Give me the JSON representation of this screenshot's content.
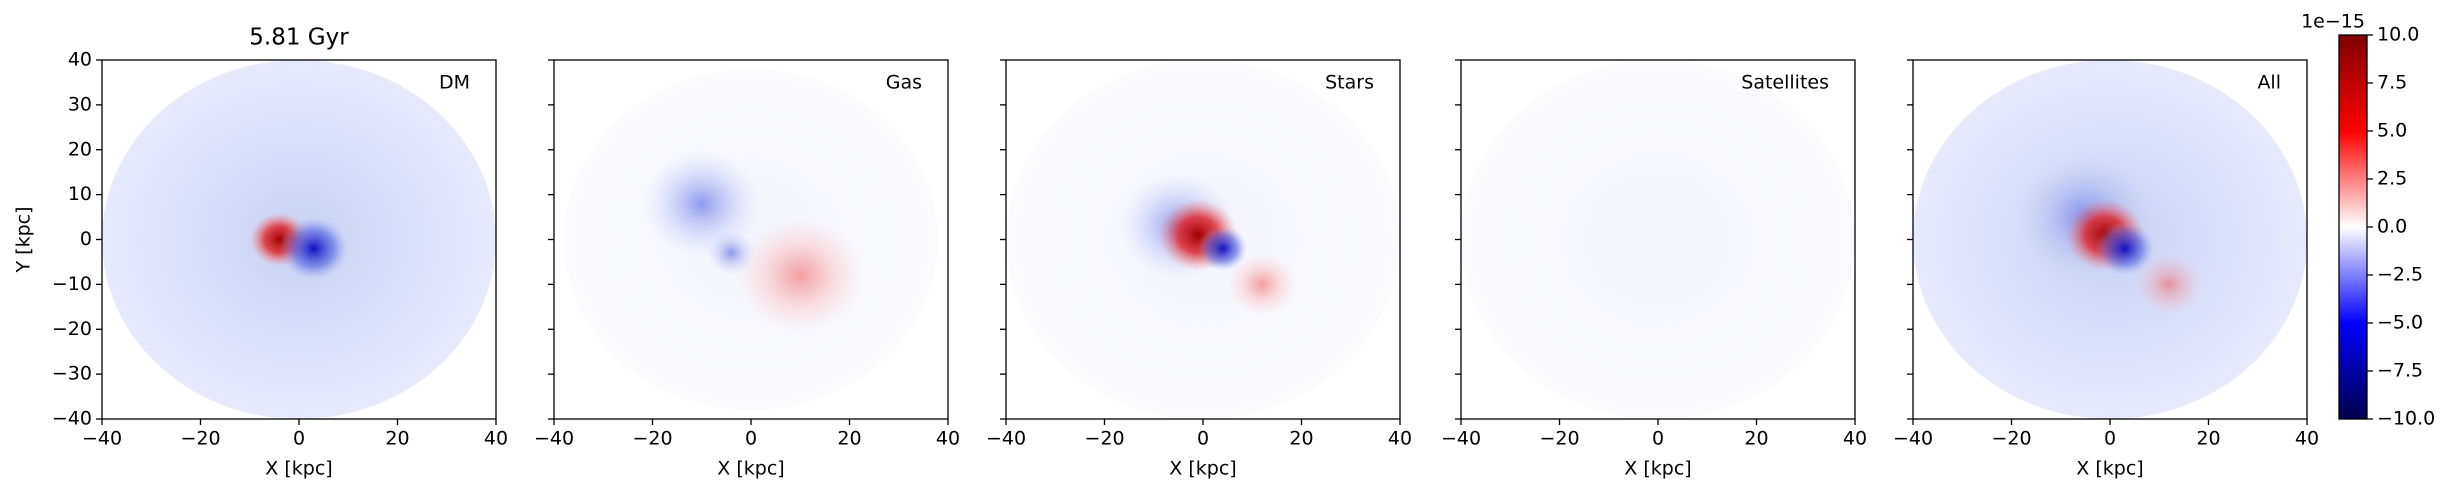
{
  "chart_data": [
    {
      "type": "heatmap",
      "title": "5.81 Gyr",
      "label": "DM",
      "xlabel": "X [kpc]",
      "ylabel": "Y [kpc]",
      "xlim": [
        -40,
        40
      ],
      "ylim": [
        -40,
        40
      ],
      "xticks": [
        {
          "value": -40,
          "label": "−40"
        },
        {
          "value": -20,
          "label": "−20"
        },
        0,
        20,
        40
      ],
      "yticks": [
        {
          "value": -40,
          "label": "−40"
        },
        {
          "value": -30,
          "label": "−30"
        },
        {
          "value": -20,
          "label": "−20"
        },
        {
          "value": -10,
          "label": "−10"
        },
        0,
        10,
        20,
        30,
        40
      ]
    },
    {
      "type": "heatmap",
      "label": "Gas",
      "xlabel": "X [kpc]",
      "xlim": [
        -40,
        40
      ],
      "ylim": [
        -40,
        40
      ],
      "xticks": [
        {
          "value": -40,
          "label": "−40"
        },
        {
          "value": -20,
          "label": "−20"
        },
        0,
        20,
        40
      ],
      "yticks": [
        -40,
        -30,
        -20,
        -10,
        0,
        10,
        20,
        30,
        40
      ]
    },
    {
      "type": "heatmap",
      "label": "Stars",
      "xlabel": "X [kpc]",
      "xlim": [
        -40,
        40
      ],
      "ylim": [
        -40,
        40
      ],
      "xticks": [
        {
          "value": -40,
          "label": "−40"
        },
        {
          "value": -20,
          "label": "−20"
        },
        0,
        20,
        40
      ],
      "yticks": [
        -40,
        -30,
        -20,
        -10,
        0,
        10,
        20,
        30,
        40
      ]
    },
    {
      "type": "heatmap",
      "label": "Satellites",
      "xlabel": "X [kpc]",
      "xlim": [
        -40,
        40
      ],
      "ylim": [
        -40,
        40
      ],
      "xticks": [
        {
          "value": -40,
          "label": "−40"
        },
        {
          "value": -20,
          "label": "−20"
        },
        0,
        20,
        40
      ],
      "yticks": [
        -40,
        -30,
        -20,
        -10,
        0,
        10,
        20,
        30,
        40
      ]
    },
    {
      "type": "heatmap",
      "label": "All",
      "xlabel": "X [kpc]",
      "xlim": [
        -40,
        40
      ],
      "ylim": [
        -40,
        40
      ],
      "xticks": [
        {
          "value": -40,
          "label": "−40"
        },
        {
          "value": -20,
          "label": "−20"
        },
        0,
        20,
        40
      ],
      "yticks": [
        -40,
        -30,
        -20,
        -10,
        0,
        10,
        20,
        30,
        40
      ]
    }
  ],
  "colorbar": {
    "offset_label": "1e−15",
    "lim": [
      -10,
      10
    ],
    "colors": [
      "#00004c",
      "#0000ff",
      "#ffffff",
      "#ff0000",
      "#7f0000"
    ],
    "ticks": [
      {
        "value": -10,
        "label": "−10.0"
      },
      {
        "value": -7.5,
        "label": "−7.5"
      },
      {
        "value": -5,
        "label": "−5.0"
      },
      {
        "value": -2.5,
        "label": "−2.5"
      },
      {
        "value": 0,
        "label": "0.0"
      },
      {
        "value": 2.5,
        "label": "2.5"
      },
      {
        "value": 5,
        "label": "5.0"
      },
      {
        "value": 7.5,
        "label": "7.5"
      },
      {
        "value": 10,
        "label": "10.0"
      }
    ]
  }
}
